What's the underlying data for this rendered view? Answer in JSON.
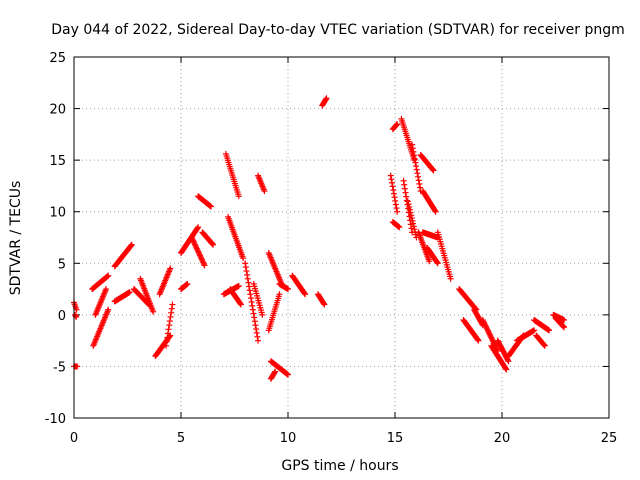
{
  "chart_data": {
    "type": "scatter",
    "title": "Day 044 of 2022, Sidereal Day-to-day VTEC variation (SDTVAR) for receiver pngm",
    "xlabel": "GPS time / hours",
    "ylabel": "SDTVAR / TECUs",
    "xlim": [
      0,
      25
    ],
    "ylim": [
      -10,
      25
    ],
    "xticks": [
      0,
      5,
      10,
      15,
      20,
      25
    ],
    "yticks": [
      -10,
      -5,
      0,
      5,
      10,
      15,
      20,
      25
    ],
    "grid": true,
    "marker": "+",
    "color": "#ff0000",
    "segments": [
      {
        "x": [
          0.0,
          0.15
        ],
        "y": [
          -5.0,
          -5.0
        ]
      },
      {
        "x": [
          0.0,
          0.12
        ],
        "y": [
          1.2,
          0.5
        ]
      },
      {
        "x": [
          0.05,
          0.1
        ],
        "y": [
          0.0,
          -0.2
        ]
      },
      {
        "x": [
          0.9,
          1.6
        ],
        "y": [
          -3.0,
          0.5
        ]
      },
      {
        "x": [
          0.85,
          1.6
        ],
        "y": [
          2.5,
          3.8
        ]
      },
      {
        "x": [
          1.0,
          1.5
        ],
        "y": [
          0.0,
          2.5
        ]
      },
      {
        "x": [
          1.9,
          2.7
        ],
        "y": [
          4.7,
          6.8
        ]
      },
      {
        "x": [
          1.9,
          2.6
        ],
        "y": [
          1.3,
          2.2
        ]
      },
      {
        "x": [
          2.8,
          3.5
        ],
        "y": [
          2.5,
          1.0
        ]
      },
      {
        "x": [
          3.1,
          3.7
        ],
        "y": [
          3.5,
          0.3
        ]
      },
      {
        "x": [
          3.8,
          4.5
        ],
        "y": [
          -4.0,
          -2.0
        ]
      },
      {
        "x": [
          4.0,
          4.5
        ],
        "y": [
          2.0,
          4.5
        ]
      },
      {
        "x": [
          4.3,
          4.6
        ],
        "y": [
          -3.0,
          1.0
        ]
      },
      {
        "x": [
          5.0,
          5.3
        ],
        "y": [
          2.5,
          3.0
        ]
      },
      {
        "x": [
          5.0,
          5.8
        ],
        "y": [
          6.0,
          8.5
        ]
      },
      {
        "x": [
          5.8,
          6.4
        ],
        "y": [
          11.5,
          10.5
        ]
      },
      {
        "x": [
          6.0,
          6.5
        ],
        "y": [
          8.0,
          6.8
        ]
      },
      {
        "x": [
          5.5,
          6.1
        ],
        "y": [
          7.5,
          4.8
        ]
      },
      {
        "x": [
          7.1,
          7.7
        ],
        "y": [
          15.6,
          11.5
        ]
      },
      {
        "x": [
          7.2,
          7.9
        ],
        "y": [
          9.5,
          5.5
        ]
      },
      {
        "x": [
          7.0,
          7.7
        ],
        "y": [
          2.0,
          2.8
        ]
      },
      {
        "x": [
          7.3,
          7.8
        ],
        "y": [
          2.5,
          1.0
        ]
      },
      {
        "x": [
          8.0,
          8.6
        ],
        "y": [
          5.0,
          -2.5
        ]
      },
      {
        "x": [
          8.4,
          8.8
        ],
        "y": [
          3.0,
          0.0
        ]
      },
      {
        "x": [
          8.6,
          8.9
        ],
        "y": [
          13.5,
          12.0
        ]
      },
      {
        "x": [
          9.1,
          9.7
        ],
        "y": [
          6.0,
          3.0
        ]
      },
      {
        "x": [
          9.1,
          9.6
        ],
        "y": [
          -1.5,
          2.0
        ]
      },
      {
        "x": [
          9.2,
          10.0
        ],
        "y": [
          -4.5,
          -5.8
        ]
      },
      {
        "x": [
          9.2,
          9.4
        ],
        "y": [
          -6.2,
          -5.5
        ]
      },
      {
        "x": [
          9.6,
          10.0
        ],
        "y": [
          3.0,
          2.5
        ]
      },
      {
        "x": [
          10.2,
          10.8
        ],
        "y": [
          3.8,
          2.0
        ]
      },
      {
        "x": [
          11.4,
          11.7
        ],
        "y": [
          2.0,
          1.0
        ]
      },
      {
        "x": [
          11.6,
          11.8
        ],
        "y": [
          20.3,
          21.0
        ]
      },
      {
        "x": [
          14.9,
          15.1
        ],
        "y": [
          18.0,
          18.5
        ]
      },
      {
        "x": [
          14.8,
          15.1
        ],
        "y": [
          13.5,
          10.0
        ]
      },
      {
        "x": [
          14.9,
          15.2
        ],
        "y": [
          9.0,
          8.5
        ]
      },
      {
        "x": [
          15.3,
          15.9
        ],
        "y": [
          19.0,
          15.0
        ]
      },
      {
        "x": [
          15.4,
          15.8
        ],
        "y": [
          13.0,
          8.0
        ]
      },
      {
        "x": [
          15.6,
          16.0
        ],
        "y": [
          11.0,
          7.5
        ]
      },
      {
        "x": [
          15.8,
          16.2
        ],
        "y": [
          16.5,
          12.0
        ]
      },
      {
        "x": [
          16.1,
          16.6
        ],
        "y": [
          8.0,
          5.2
        ]
      },
      {
        "x": [
          16.2,
          16.8
        ],
        "y": [
          15.5,
          14.0
        ]
      },
      {
        "x": [
          16.3,
          16.9
        ],
        "y": [
          12.0,
          10.0
        ]
      },
      {
        "x": [
          16.3,
          17.0
        ],
        "y": [
          8.0,
          7.5
        ]
      },
      {
        "x": [
          17.0,
          17.6
        ],
        "y": [
          8.0,
          3.5
        ]
      },
      {
        "x": [
          16.5,
          17.0
        ],
        "y": [
          6.5,
          5.0
        ]
      },
      {
        "x": [
          18.0,
          18.8
        ],
        "y": [
          2.5,
          0.5
        ]
      },
      {
        "x": [
          18.2,
          18.9
        ],
        "y": [
          -0.5,
          -2.5
        ]
      },
      {
        "x": [
          18.7,
          19.1
        ],
        "y": [
          0.5,
          -1.0
        ]
      },
      {
        "x": [
          19.1,
          19.8
        ],
        "y": [
          -0.5,
          -3.5
        ]
      },
      {
        "x": [
          19.5,
          20.2
        ],
        "y": [
          -3.0,
          -5.3
        ]
      },
      {
        "x": [
          19.8,
          20.3
        ],
        "y": [
          -2.5,
          -4.5
        ]
      },
      {
        "x": [
          20.3,
          21.0
        ],
        "y": [
          -4.0,
          -2.0
        ]
      },
      {
        "x": [
          20.7,
          21.5
        ],
        "y": [
          -2.5,
          -1.5
        ]
      },
      {
        "x": [
          21.5,
          22.2
        ],
        "y": [
          -0.5,
          -1.5
        ]
      },
      {
        "x": [
          21.6,
          22.0
        ],
        "y": [
          -2.0,
          -3.0
        ]
      },
      {
        "x": [
          22.5,
          22.9
        ],
        "y": [
          -0.3,
          -1.2
        ]
      },
      {
        "x": [
          22.4,
          22.9
        ],
        "y": [
          0.0,
          -0.5
        ]
      }
    ]
  }
}
